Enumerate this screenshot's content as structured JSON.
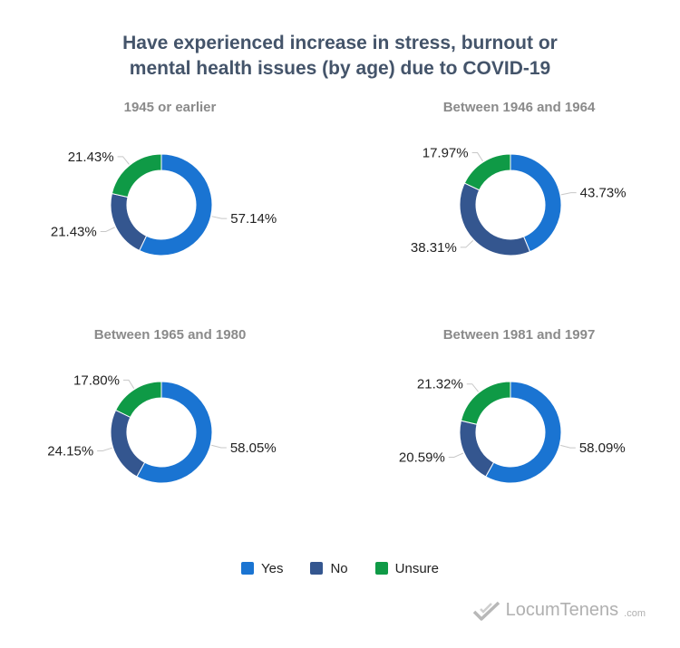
{
  "title_line1": "Have experienced increase in stress, burnout or",
  "title_line2": "mental health issues (by age) due to COVID-19",
  "colors": {
    "Yes": "#1a74d2",
    "No": "#34568f",
    "Unsure": "#0f9a46"
  },
  "legend": {
    "yes": "Yes",
    "no": "No",
    "unsure": "Unsure"
  },
  "brand": {
    "name": "LocumTenens",
    "tld": ".com",
    "logo_icon": "checkmark-logo-icon"
  },
  "chart_data": [
    {
      "type": "pie",
      "title": "1945 or earlier",
      "slices": [
        {
          "label": "Yes",
          "value": 57.14,
          "text": "57.14%"
        },
        {
          "label": "No",
          "value": 21.43,
          "text": "21.43%"
        },
        {
          "label": "Unsure",
          "value": 21.43,
          "text": "21.43%"
        }
      ]
    },
    {
      "type": "pie",
      "title": "Between 1946 and 1964",
      "slices": [
        {
          "label": "Yes",
          "value": 43.73,
          "text": "43.73%"
        },
        {
          "label": "No",
          "value": 38.31,
          "text": "38.31%"
        },
        {
          "label": "Unsure",
          "value": 17.97,
          "text": "17.97%"
        }
      ]
    },
    {
      "type": "pie",
      "title": "Between 1965 and 1980",
      "slices": [
        {
          "label": "Yes",
          "value": 58.05,
          "text": "58.05%"
        },
        {
          "label": "No",
          "value": 24.15,
          "text": "24.15%"
        },
        {
          "label": "Unsure",
          "value": 17.8,
          "text": "17.80%"
        }
      ]
    },
    {
      "type": "pie",
      "title": "Between 1981 and 1997",
      "slices": [
        {
          "label": "Yes",
          "value": 58.09,
          "text": "58.09%"
        },
        {
          "label": "No",
          "value": 20.59,
          "text": "20.59%"
        },
        {
          "label": "Unsure",
          "value": 21.32,
          "text": "21.32%"
        }
      ]
    }
  ]
}
